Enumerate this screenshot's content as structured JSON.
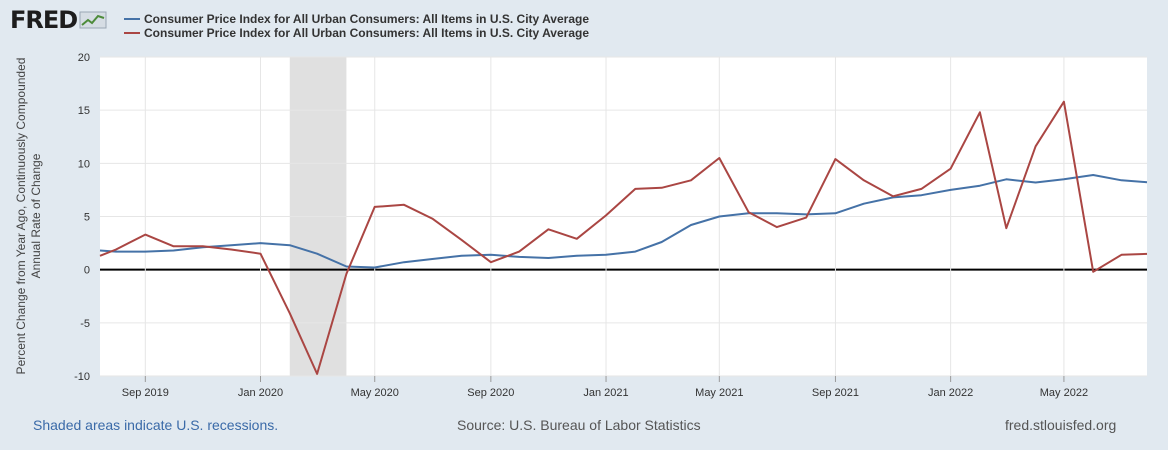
{
  "header": {
    "logo_text": "FRED"
  },
  "footer": {
    "recession_note": "Shaded areas indicate U.S. recessions.",
    "source": "Source: U.S. Bureau of Labor Statistics",
    "site": "fred.stlouisfed.org"
  },
  "colors": {
    "series_blue": "#4572a7",
    "series_red": "#aa4643",
    "recession": "#e0e0e0",
    "background": "#e1e9f0",
    "plot_bg": "#ffffff"
  },
  "chart_data": {
    "type": "line",
    "ylabel": "Percent Change from Year Ago, Continuously Compounded Annual Rate of Change",
    "ylabel_lines": [
      "Percent Change from Year Ago, Continuously Compounded",
      "Annual Rate of Change"
    ],
    "ylim": [
      -10,
      20
    ],
    "yticks": [
      -10,
      -5,
      0,
      5,
      10,
      15,
      20
    ],
    "xlim": [
      "2019-07-15",
      "2022-07-28"
    ],
    "xticks": [
      {
        "date": "2019-09-01",
        "label": "Sep 2019"
      },
      {
        "date": "2020-01-01",
        "label": "Jan 2020"
      },
      {
        "date": "2020-05-01",
        "label": "May 2020"
      },
      {
        "date": "2020-09-01",
        "label": "Sep 2020"
      },
      {
        "date": "2021-01-01",
        "label": "Jan 2021"
      },
      {
        "date": "2021-05-01",
        "label": "May 2021"
      },
      {
        "date": "2021-09-01",
        "label": "Sep 2021"
      },
      {
        "date": "2022-01-01",
        "label": "Jan 2022"
      },
      {
        "date": "2022-05-01",
        "label": "May 2022"
      }
    ],
    "recessions": [
      [
        "2020-02-01",
        "2020-04-01"
      ]
    ],
    "grid": true,
    "legend": "top-left",
    "x": [
      "2019-07-01",
      "2019-08-01",
      "2019-09-01",
      "2019-10-01",
      "2019-11-01",
      "2019-12-01",
      "2020-01-01",
      "2020-02-01",
      "2020-03-01",
      "2020-04-01",
      "2020-05-01",
      "2020-06-01",
      "2020-07-01",
      "2020-08-01",
      "2020-09-01",
      "2020-10-01",
      "2020-11-01",
      "2020-12-01",
      "2021-01-01",
      "2021-02-01",
      "2021-03-01",
      "2021-04-01",
      "2021-05-01",
      "2021-06-01",
      "2021-07-01",
      "2021-08-01",
      "2021-09-01",
      "2021-10-01",
      "2021-11-01",
      "2021-12-01",
      "2022-01-01",
      "2022-02-01",
      "2022-03-01",
      "2022-04-01",
      "2022-05-01",
      "2022-06-01",
      "2022-07-01",
      "2022-08-01"
    ],
    "series": [
      {
        "name": "Consumer Price Index for All Urban Consumers: All Items in U.S. City Average",
        "color": "#4572a7",
        "values": [
          1.8,
          1.7,
          1.7,
          1.8,
          2.1,
          2.3,
          2.5,
          2.3,
          1.5,
          0.3,
          0.2,
          0.7,
          1.0,
          1.3,
          1.4,
          1.2,
          1.1,
          1.3,
          1.4,
          1.7,
          2.6,
          4.2,
          5.0,
          5.3,
          5.3,
          5.2,
          5.3,
          6.2,
          6.8,
          7.0,
          7.5,
          7.9,
          8.5,
          8.2,
          8.5,
          8.9,
          8.4,
          8.2
        ]
      },
      {
        "name": "Consumer Price Index for All Urban Consumers: All Items in U.S. City Average",
        "color": "#aa4643",
        "values": [
          1.3,
          1.9,
          3.3,
          2.2,
          2.2,
          1.9,
          1.5,
          -4.1,
          -9.8,
          -0.4,
          5.9,
          6.1,
          4.8,
          2.8,
          0.7,
          1.7,
          3.8,
          2.9,
          5.1,
          7.6,
          7.7,
          8.4,
          10.5,
          5.4,
          4.0,
          4.9,
          10.4,
          8.4,
          6.9,
          7.6,
          9.5,
          14.8,
          3.9,
          11.6,
          15.8,
          -0.2,
          1.4,
          1.5
        ]
      }
    ]
  }
}
